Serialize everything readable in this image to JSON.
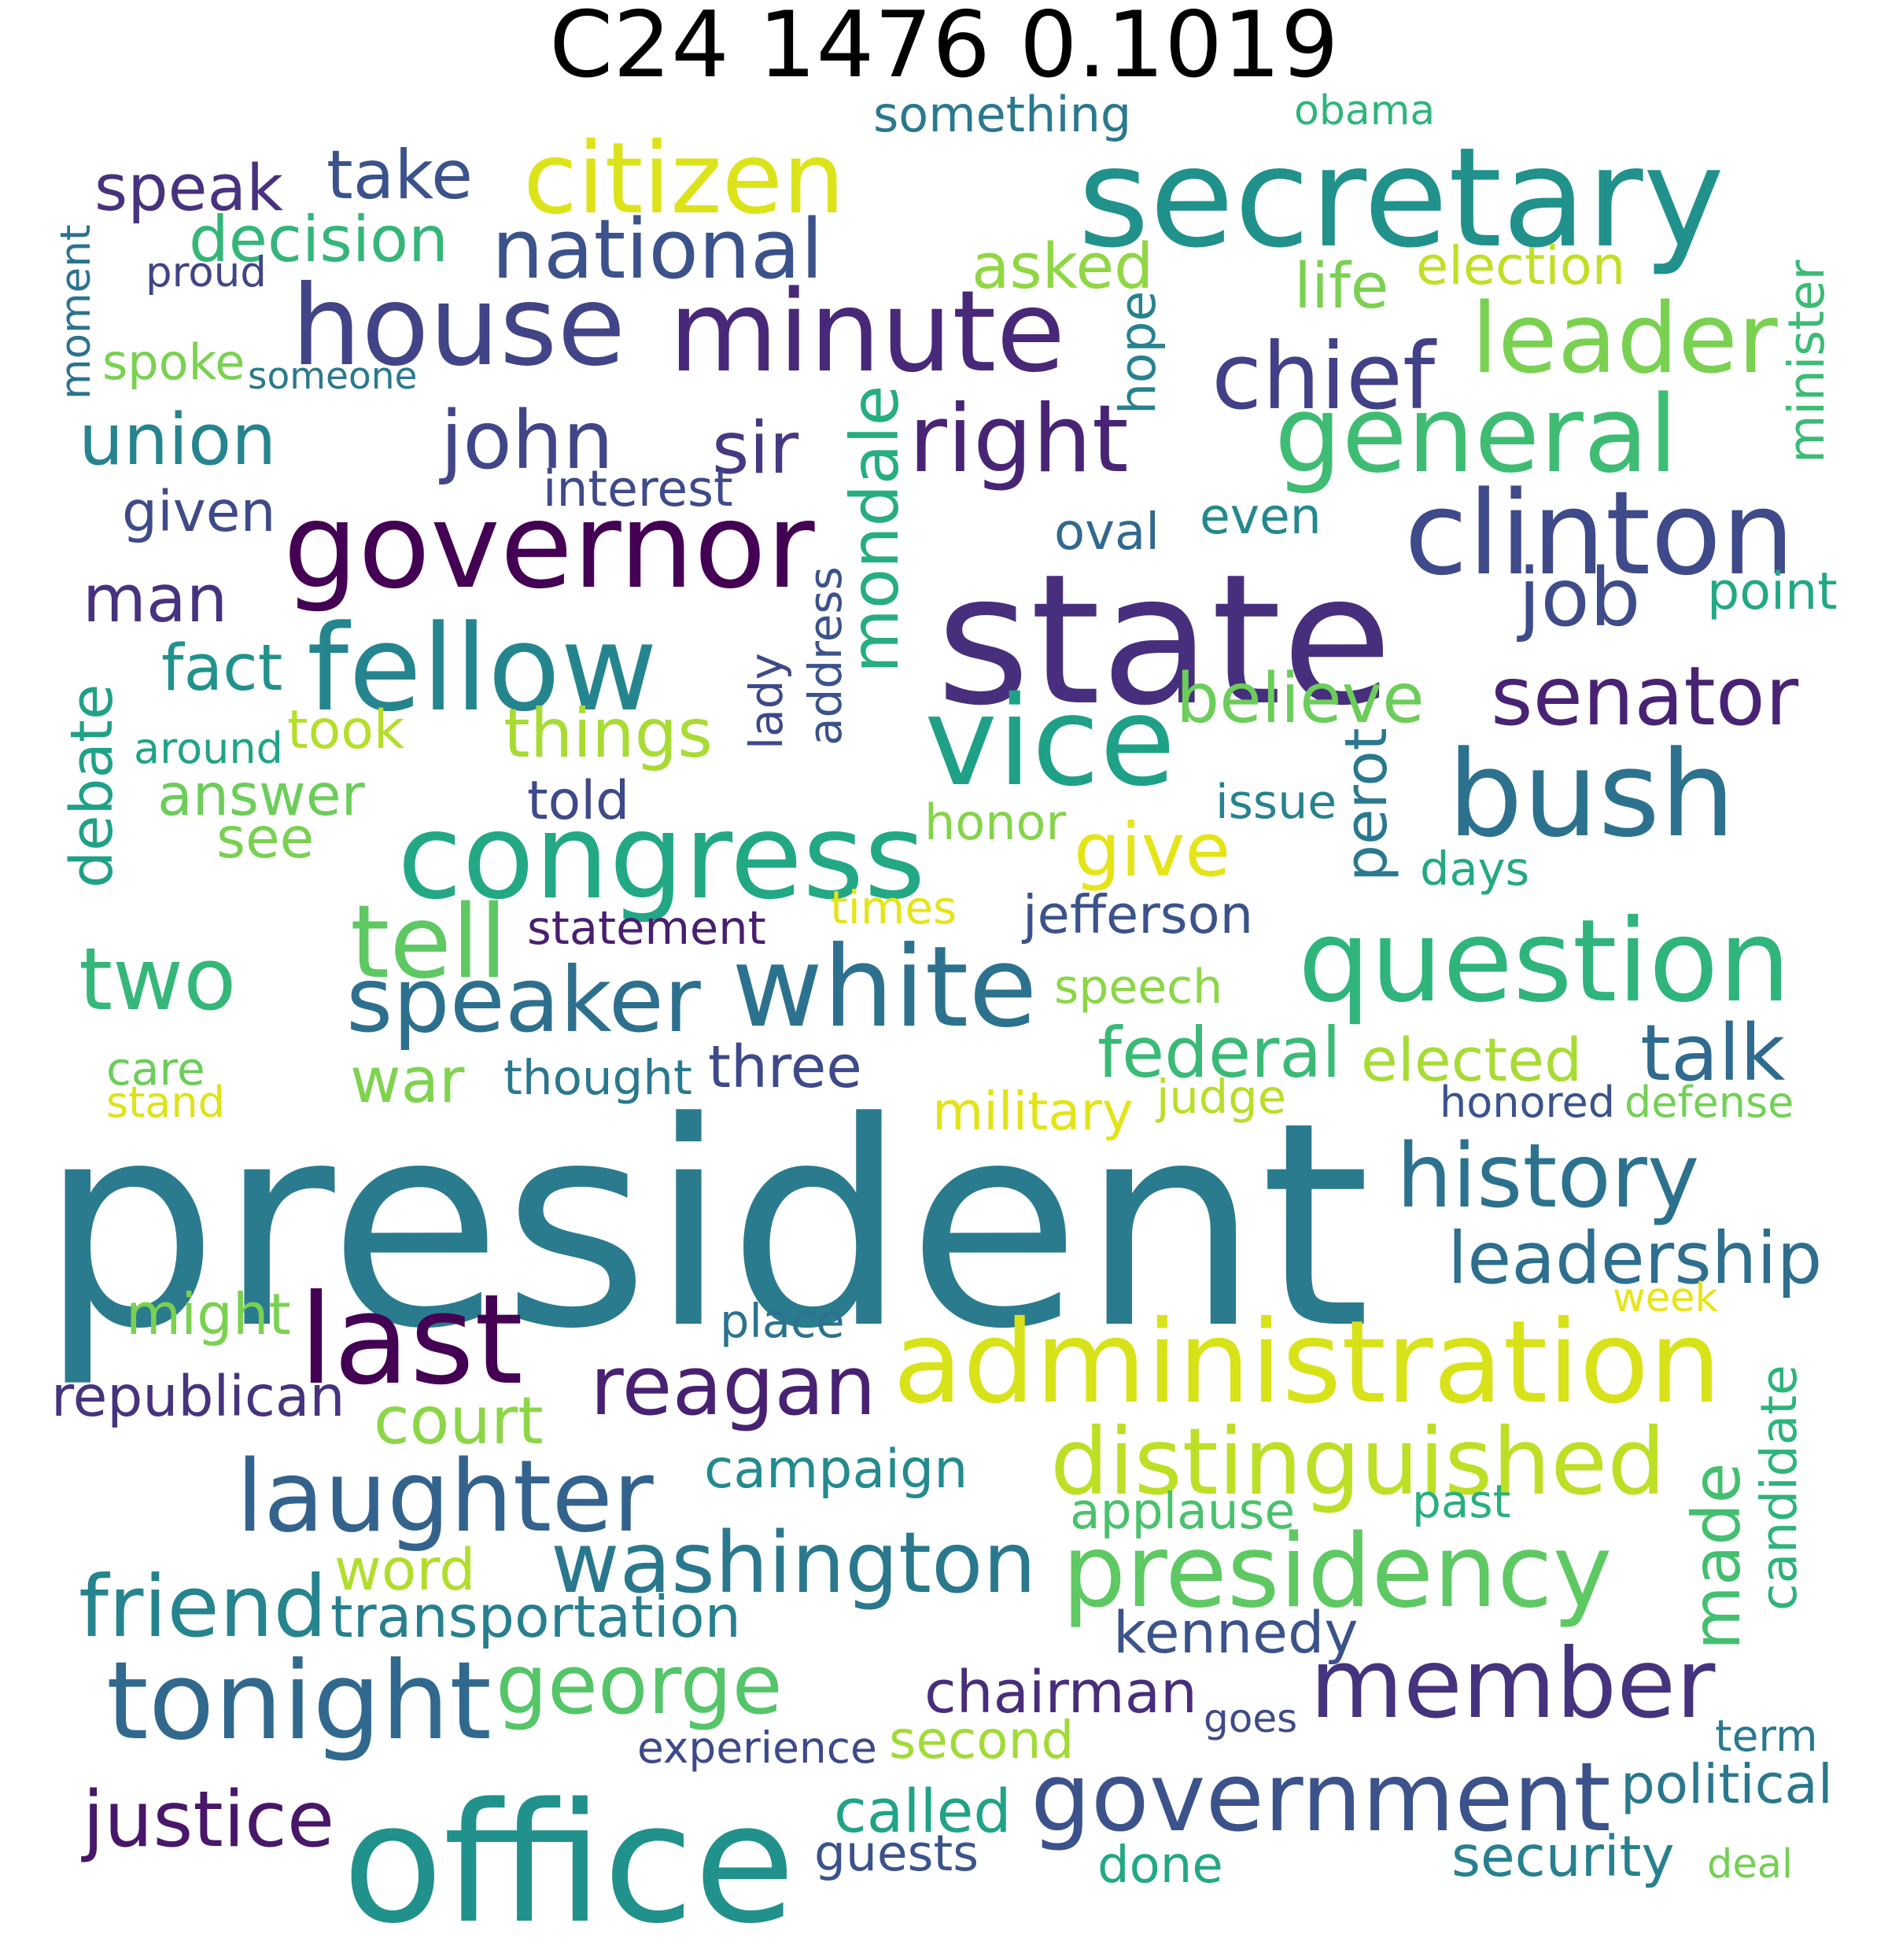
{
  "title": "C24 1476 0.1019",
  "words": [
    {
      "text": "president",
      "color": "#2a7b8e"
    },
    {
      "text": "state",
      "color": "#472f7d"
    },
    {
      "text": "secretary",
      "color": "#21918c"
    },
    {
      "text": "office",
      "color": "#21918c"
    },
    {
      "text": "administration",
      "color": "#d8e219"
    },
    {
      "text": "congress",
      "color": "#22a884"
    },
    {
      "text": "house",
      "color": "#414487"
    },
    {
      "text": "minute",
      "color": "#482878"
    },
    {
      "text": "governor",
      "color": "#440154"
    },
    {
      "text": "bush",
      "color": "#2c728e"
    },
    {
      "text": "member",
      "color": "#46337e"
    },
    {
      "text": "government",
      "color": "#3b528b"
    },
    {
      "text": "presidency",
      "color": "#5ec962"
    },
    {
      "text": "question",
      "color": "#2fb47c"
    },
    {
      "text": "white",
      "color": "#2c728e"
    },
    {
      "text": "vice",
      "color": "#1fa187"
    },
    {
      "text": "fellow",
      "color": "#25858e"
    },
    {
      "text": "general",
      "color": "#3fbc73"
    },
    {
      "text": "clinton",
      "color": "#3e4a89"
    },
    {
      "text": "last",
      "color": "#440154"
    },
    {
      "text": "distinguished",
      "color": "#bddf26"
    },
    {
      "text": "laughter",
      "color": "#33638d"
    },
    {
      "text": "tonight",
      "color": "#31688e"
    },
    {
      "text": "washington",
      "color": "#2a788e"
    },
    {
      "text": "george",
      "color": "#54c568"
    },
    {
      "text": "speaker",
      "color": "#2d708e"
    },
    {
      "text": "leader",
      "color": "#7ad151"
    },
    {
      "text": "reagan",
      "color": "#482173"
    },
    {
      "text": "two",
      "color": "#35b779"
    },
    {
      "text": "citizen",
      "color": "#dce319"
    },
    {
      "text": "mondale",
      "color": "#26ad81"
    },
    {
      "text": "national",
      "color": "#3b528b"
    },
    {
      "text": "chief",
      "color": "#424086"
    },
    {
      "text": "john",
      "color": "#404688"
    },
    {
      "text": "right",
      "color": "#482475"
    },
    {
      "text": "man",
      "color": "#46327e"
    },
    {
      "text": "senator",
      "color": "#482374"
    },
    {
      "text": "job",
      "color": "#3e4c8a"
    },
    {
      "text": "history",
      "color": "#2c728e"
    },
    {
      "text": "leadership",
      "color": "#2e6e8e"
    },
    {
      "text": "friend",
      "color": "#25848e"
    },
    {
      "text": "justice",
      "color": "#481769"
    },
    {
      "text": "made",
      "color": "#44bf70"
    },
    {
      "text": "candidate",
      "color": "#2eb37c"
    },
    {
      "text": "union",
      "color": "#25848e"
    },
    {
      "text": "speak",
      "color": "#46327e"
    },
    {
      "text": "take",
      "color": "#3b528b"
    },
    {
      "text": "decision",
      "color": "#34b679"
    },
    {
      "text": "asked",
      "color": "#90d743"
    },
    {
      "text": "life",
      "color": "#7ad151"
    },
    {
      "text": "election",
      "color": "#c0df25"
    },
    {
      "text": "something",
      "color": "#2a788e"
    },
    {
      "text": "obama",
      "color": "#2fb47c"
    },
    {
      "text": "hope",
      "color": "#26828e"
    },
    {
      "text": "minister",
      "color": "#3bbb75"
    },
    {
      "text": "moment",
      "color": "#2c728e"
    },
    {
      "text": "proud",
      "color": "#414487"
    },
    {
      "text": "spoke",
      "color": "#7ad151"
    },
    {
      "text": "someone",
      "color": "#2a788e"
    },
    {
      "text": "sir",
      "color": "#443a83"
    },
    {
      "text": "interest",
      "color": "#3e4a89"
    },
    {
      "text": "given",
      "color": "#3e4a89"
    },
    {
      "text": "oval",
      "color": "#31688e"
    },
    {
      "text": "even",
      "color": "#23898e"
    },
    {
      "text": "point",
      "color": "#22a884"
    },
    {
      "text": "fact",
      "color": "#21918c"
    },
    {
      "text": "debate",
      "color": "#1fa187"
    },
    {
      "text": "around",
      "color": "#20a386"
    },
    {
      "text": "took",
      "color": "#b5de2b"
    },
    {
      "text": "things",
      "color": "#a8db34"
    },
    {
      "text": "answer",
      "color": "#6ccd5a"
    },
    {
      "text": "see",
      "color": "#7ad151"
    },
    {
      "text": "lady",
      "color": "#3e4989"
    },
    {
      "text": "address",
      "color": "#3b528b"
    },
    {
      "text": "believe",
      "color": "#6ccd5a"
    },
    {
      "text": "perot",
      "color": "#2a788e"
    },
    {
      "text": "told",
      "color": "#3e4989"
    },
    {
      "text": "issue",
      "color": "#26828e"
    },
    {
      "text": "honor",
      "color": "#84d44b"
    },
    {
      "text": "give",
      "color": "#e5e419"
    },
    {
      "text": "days",
      "color": "#23a983"
    },
    {
      "text": "tell",
      "color": "#5ec962"
    },
    {
      "text": "times",
      "color": "#e5e419"
    },
    {
      "text": "statement",
      "color": "#481f70"
    },
    {
      "text": "jefferson",
      "color": "#3b528b"
    },
    {
      "text": "speech",
      "color": "#8bd646"
    },
    {
      "text": "talk",
      "color": "#2f6b8e"
    },
    {
      "text": "federal",
      "color": "#3aba76"
    },
    {
      "text": "elected",
      "color": "#a8db34"
    },
    {
      "text": "war",
      "color": "#7fd34e"
    },
    {
      "text": "thought",
      "color": "#2a788e"
    },
    {
      "text": "three",
      "color": "#3e4989"
    },
    {
      "text": "care",
      "color": "#6ccd5a"
    },
    {
      "text": "stand",
      "color": "#dde318"
    },
    {
      "text": "military",
      "color": "#e2e418"
    },
    {
      "text": "judge",
      "color": "#b8de29"
    },
    {
      "text": "honored",
      "color": "#3b528b"
    },
    {
      "text": "defense",
      "color": "#73d056"
    },
    {
      "text": "might",
      "color": "#7ad151"
    },
    {
      "text": "place",
      "color": "#2c728e"
    },
    {
      "text": "week",
      "color": "#e7e419"
    },
    {
      "text": "republican",
      "color": "#46337e"
    },
    {
      "text": "court",
      "color": "#8bd646"
    },
    {
      "text": "campaign",
      "color": "#238a8d"
    },
    {
      "text": "applause",
      "color": "#4ac16d"
    },
    {
      "text": "past",
      "color": "#29af7f"
    },
    {
      "text": "word",
      "color": "#b2dd2d"
    },
    {
      "text": "transportation",
      "color": "#277f8e"
    },
    {
      "text": "kennedy",
      "color": "#3b528b"
    },
    {
      "text": "chairman",
      "color": "#472d7b"
    },
    {
      "text": "goes",
      "color": "#3e4a89"
    },
    {
      "text": "second",
      "color": "#a2da37"
    },
    {
      "text": "experience",
      "color": "#3e4989"
    },
    {
      "text": "term",
      "color": "#2a788e"
    },
    {
      "text": "political",
      "color": "#2a788e"
    },
    {
      "text": "called",
      "color": "#20a386"
    },
    {
      "text": "guests",
      "color": "#3b528b"
    },
    {
      "text": "done",
      "color": "#22a884"
    },
    {
      "text": "security",
      "color": "#27808e"
    },
    {
      "text": "deal",
      "color": "#75d054"
    }
  ]
}
